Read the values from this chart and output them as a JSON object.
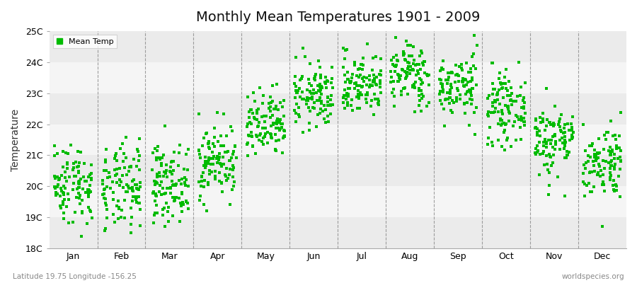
{
  "title": "Monthly Mean Temperatures 1901 - 2009",
  "ylabel": "Temperature",
  "xlabel": "",
  "months": [
    "Jan",
    "Feb",
    "Mar",
    "Apr",
    "May",
    "Jun",
    "Jul",
    "Aug",
    "Sep",
    "Oct",
    "Nov",
    "Dec"
  ],
  "ylim": [
    18,
    25
  ],
  "yticks": [
    18,
    19,
    20,
    21,
    22,
    23,
    24,
    25
  ],
  "ytick_labels": [
    "18C",
    "19C",
    "20C",
    "21C",
    "22C",
    "23C",
    "24C",
    "25C"
  ],
  "marker_color": "#00bb00",
  "marker": "s",
  "marker_size": 2.5,
  "legend_label": "Mean Temp",
  "footer_left": "Latitude 19.75 Longitude -156.25",
  "footer_right": "worldspecies.org",
  "bg_color": "#ffffff",
  "band_colors": [
    "#ebebeb",
    "#f5f5f5"
  ],
  "monthly_means": [
    20.1,
    19.9,
    20.1,
    20.8,
    21.9,
    22.9,
    23.3,
    23.6,
    23.2,
    22.5,
    21.5,
    20.8
  ],
  "monthly_stds": [
    0.65,
    0.7,
    0.6,
    0.6,
    0.55,
    0.52,
    0.5,
    0.52,
    0.52,
    0.55,
    0.6,
    0.6
  ],
  "n_years": 109,
  "seed": 42,
  "dashed_line_color": "#888888",
  "footer_color": "#888888",
  "title_fontsize": 14,
  "axis_fontsize": 9,
  "ylabel_fontsize": 10
}
